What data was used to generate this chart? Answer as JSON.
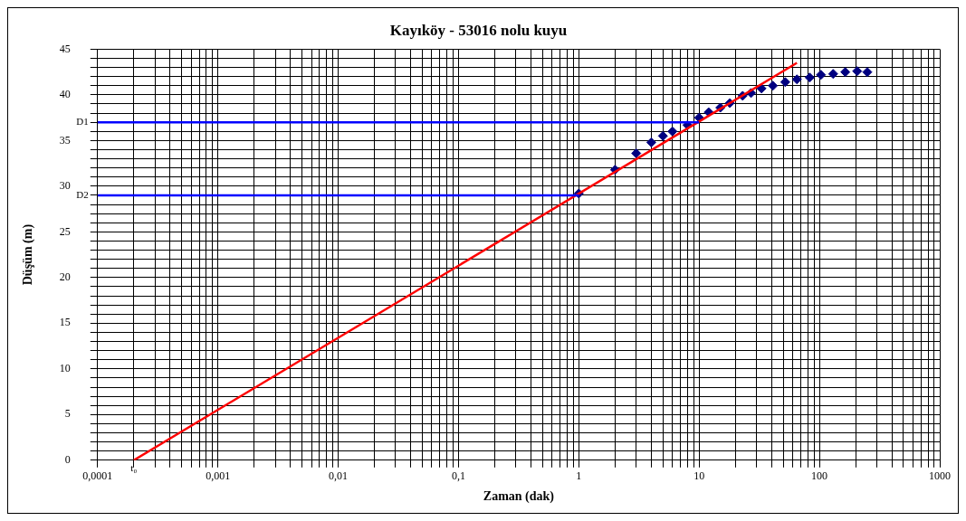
{
  "chart_data": {
    "type": "scatter",
    "title": "Kayıköy - 53016 nolu kuyu",
    "xlabel": "Zaman (dak)",
    "ylabel": "Düşüm (m)",
    "log": "x",
    "xlim": [
      0.0001,
      1000
    ],
    "ylim": [
      0,
      45
    ],
    "xticks": [
      {
        "value": 0.0001,
        "label": "0,0001"
      },
      {
        "value": 0.0002,
        "label": null
      },
      {
        "value": 0.0003,
        "label": null
      },
      {
        "value": 0.0004,
        "label": null
      },
      {
        "value": 0.0005,
        "label": null
      },
      {
        "value": 0.0006,
        "label": null
      },
      {
        "value": 0.0007,
        "label": null
      },
      {
        "value": 0.0008,
        "label": null
      },
      {
        "value": 0.0009,
        "label": null
      },
      {
        "value": 0.001,
        "label": "0,001"
      },
      {
        "value": 0.002,
        "label": null
      },
      {
        "value": 0.003,
        "label": null
      },
      {
        "value": 0.004,
        "label": null
      },
      {
        "value": 0.005,
        "label": null
      },
      {
        "value": 0.006,
        "label": null
      },
      {
        "value": 0.007,
        "label": null
      },
      {
        "value": 0.008,
        "label": null
      },
      {
        "value": 0.009,
        "label": null
      },
      {
        "value": 0.01,
        "label": "0,01"
      },
      {
        "value": 0.02,
        "label": null
      },
      {
        "value": 0.03,
        "label": null
      },
      {
        "value": 0.04,
        "label": null
      },
      {
        "value": 0.05,
        "label": null
      },
      {
        "value": 0.06,
        "label": null
      },
      {
        "value": 0.07,
        "label": null
      },
      {
        "value": 0.08,
        "label": null
      },
      {
        "value": 0.09,
        "label": null
      },
      {
        "value": 0.1,
        "label": "0,1"
      },
      {
        "value": 0.2,
        "label": null
      },
      {
        "value": 0.3,
        "label": null
      },
      {
        "value": 0.4,
        "label": null
      },
      {
        "value": 0.5,
        "label": null
      },
      {
        "value": 0.6,
        "label": null
      },
      {
        "value": 0.7,
        "label": null
      },
      {
        "value": 0.8,
        "label": null
      },
      {
        "value": 0.9,
        "label": null
      },
      1,
      {
        "value": 2,
        "label": null
      },
      {
        "value": 3,
        "label": null
      },
      {
        "value": 4,
        "label": null
      },
      {
        "value": 5,
        "label": null
      },
      {
        "value": 6,
        "label": null
      },
      {
        "value": 7,
        "label": null
      },
      {
        "value": 8,
        "label": null
      },
      {
        "value": 9,
        "label": null
      },
      10,
      {
        "value": 20,
        "label": null
      },
      {
        "value": 30,
        "label": null
      },
      {
        "value": 40,
        "label": null
      },
      {
        "value": 50,
        "label": null
      },
      {
        "value": 60,
        "label": null
      },
      {
        "value": 70,
        "label": null
      },
      {
        "value": 80,
        "label": null
      },
      {
        "value": 90,
        "label": null
      },
      100,
      {
        "value": 200,
        "label": null
      },
      {
        "value": 300,
        "label": null
      },
      {
        "value": 400,
        "label": null
      },
      {
        "value": 500,
        "label": null
      },
      {
        "value": 600,
        "label": null
      },
      {
        "value": 700,
        "label": null
      },
      {
        "value": 800,
        "label": null
      },
      {
        "value": 900,
        "label": null
      },
      1000
    ],
    "yticks": [
      0,
      {
        "value": 1,
        "label": null
      },
      {
        "value": 2,
        "label": null
      },
      {
        "value": 3,
        "label": null
      },
      {
        "value": 4,
        "label": null
      },
      5,
      {
        "value": 6,
        "label": null
      },
      {
        "value": 7,
        "label": null
      },
      {
        "value": 8,
        "label": null
      },
      {
        "value": 9,
        "label": null
      },
      10,
      {
        "value": 11,
        "label": null
      },
      {
        "value": 12,
        "label": null
      },
      {
        "value": 13,
        "label": null
      },
      {
        "value": 14,
        "label": null
      },
      15,
      {
        "value": 16,
        "label": null
      },
      {
        "value": 17,
        "label": null
      },
      {
        "value": 18,
        "label": null
      },
      {
        "value": 19,
        "label": null
      },
      20,
      {
        "value": 21,
        "label": null
      },
      {
        "value": 22,
        "label": null
      },
      {
        "value": 23,
        "label": null
      },
      {
        "value": 24,
        "label": null
      },
      25,
      {
        "value": 26,
        "label": null
      },
      {
        "value": 27,
        "label": null
      },
      {
        "value": 28,
        "label": null
      },
      {
        "value": 29,
        "label": null
      },
      30,
      {
        "value": 31,
        "label": null
      },
      {
        "value": 32,
        "label": null
      },
      {
        "value": 33,
        "label": null
      },
      {
        "value": 34,
        "label": null
      },
      35,
      {
        "value": 36,
        "label": null
      },
      {
        "value": 37,
        "label": null
      },
      {
        "value": 38,
        "label": null
      },
      {
        "value": 39,
        "label": null
      },
      40,
      {
        "value": 41,
        "label": null
      },
      {
        "value": 42,
        "label": null
      },
      {
        "value": 43,
        "label": null
      },
      {
        "value": 44,
        "label": null
      },
      45
    ],
    "grid": true,
    "legend": false,
    "marker": "diamond",
    "series": [
      {
        "type": "line",
        "name": "D2",
        "color": "#0000ff",
        "x": [
          0.0001,
          1
        ],
        "values": [
          29,
          29
        ],
        "marker": "none"
      },
      {
        "type": "line",
        "name": "D1",
        "color": "#0000ff",
        "x": [
          0.0001,
          10
        ],
        "values": [
          37,
          37
        ],
        "marker": "none"
      },
      {
        "type": "line",
        "color": "#ff0000",
        "x": [
          0.0002,
          65
        ],
        "values": [
          0,
          43.5
        ],
        "marker": "none"
      },
      {
        "type": "scatter",
        "color": "#000080",
        "x": [
          1,
          2,
          3,
          4,
          5,
          6,
          8,
          10,
          12,
          15,
          18,
          23,
          27,
          33,
          41,
          52,
          65,
          83,
          103,
          130,
          164,
          206,
          250
        ],
        "values": [
          29.2,
          31.8,
          33.6,
          34.8,
          35.5,
          36,
          36.7,
          37.5,
          38.1,
          38.6,
          39.1,
          39.9,
          40.2,
          40.7,
          41,
          41.4,
          41.7,
          41.9,
          42.2,
          42.3,
          42.5,
          42.6,
          42.5
        ]
      }
    ],
    "annotations": [
      {
        "text": "t₀",
        "x": 0.0002,
        "y": 0
      }
    ]
  }
}
